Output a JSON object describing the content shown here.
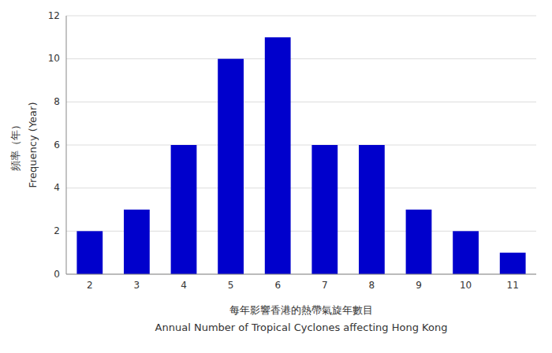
{
  "chart_data": {
    "type": "bar",
    "categories": [
      2,
      3,
      4,
      5,
      6,
      7,
      8,
      9,
      10,
      11
    ],
    "values": [
      2,
      3,
      6,
      10,
      11,
      6,
      6,
      3,
      2,
      1
    ],
    "color": "#0000CC",
    "ylim": [
      0,
      12
    ],
    "yticks": [
      0,
      2,
      4,
      6,
      8,
      10,
      12
    ],
    "grid": true,
    "xlabel": [
      "每年影響香港的熱帶氣旋年數目",
      "Annual Number of Tropical Cyclones affecting Hong Kong"
    ],
    "ylabel": [
      "頻率（年）",
      "Frequency (Year)"
    ]
  }
}
